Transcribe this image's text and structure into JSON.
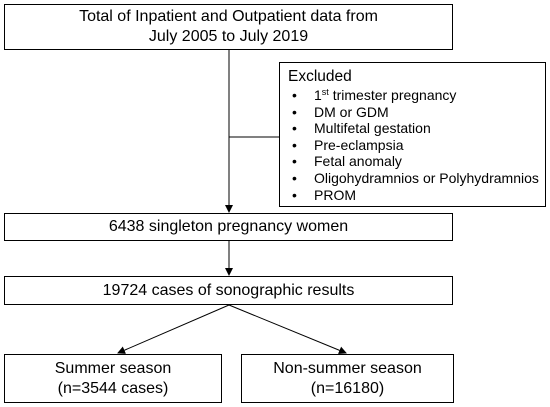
{
  "source_box": {
    "line1": "Total of Inpatient and Outpatient data from",
    "line2": "July 2005 to July 2019"
  },
  "excluded_box": {
    "title": "Excluded",
    "first_item_prefix": "1",
    "first_item_sup": "st",
    "first_item_suffix": " trimester pregnancy",
    "items": [
      "DM or GDM",
      "Multifetal gestation",
      "Pre-eclampsia",
      "Fetal anomaly",
      "Oligohydramnios or Polyhydramnios",
      "PROM"
    ]
  },
  "singleton_box": {
    "text": "6438 singleton pregnancy women"
  },
  "sonographic_box": {
    "text": "19724 cases of sonographic results"
  },
  "summer_box": {
    "line1": "Summer season",
    "line2": "(n=3544 cases)"
  },
  "nonsummer_box": {
    "line1": "Non-summer season",
    "line2": "(n=16180)"
  },
  "colors": {
    "line": "#000000",
    "box_border": "#000000",
    "background": "#ffffff"
  }
}
